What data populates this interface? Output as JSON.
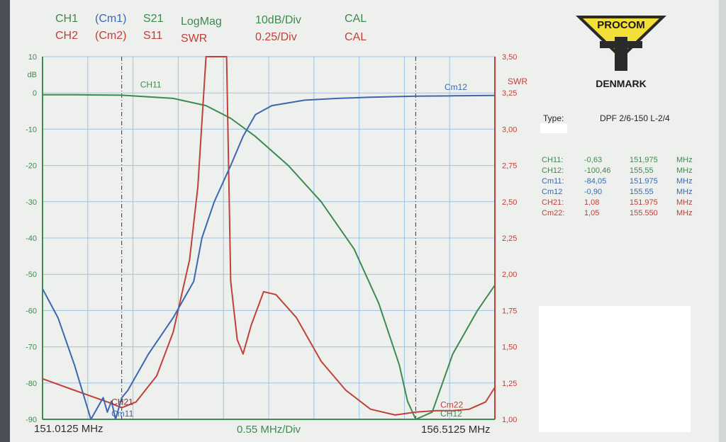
{
  "header": {
    "ch1": "CH1",
    "cm1": "(Cm1)",
    "s21": "S21",
    "logmag": "LogMag",
    "div1": "10dB/Div",
    "cal1": "CAL",
    "ch2": "CH2",
    "cm2": "(Cm2)",
    "s11": "S11",
    "swr": "SWR",
    "div2": "0.25/Div",
    "cal2": "CAL"
  },
  "logo": {
    "brand": "PROCOM",
    "country": "DENMARK"
  },
  "info": {
    "type_label": "Type:",
    "type_value": "DPF 2/6-150 L-2/4"
  },
  "measurements": [
    {
      "label": "CH11:",
      "value": "-0,63",
      "freq": "151,975",
      "unit": "MHz",
      "color": "#3d8a4e"
    },
    {
      "label": "CH12:",
      "value": "-100,46",
      "freq": "155,55",
      "unit": "MHz",
      "color": "#3d8a4e"
    },
    {
      "label": "Cm11:",
      "value": "-84,05",
      "freq": "151.975",
      "unit": "MHz",
      "color": "#3a68b0"
    },
    {
      "label": "Cm12",
      "value": "-0,90",
      "freq": "155.55",
      "unit": "MHz",
      "color": "#3a68b0"
    },
    {
      "label": "CH21:",
      "value": "1,08",
      "freq": "151.975",
      "unit": "MHz",
      "color": "#c0403a"
    },
    {
      "label": "Cm22:",
      "value": "1,05",
      "freq": "155.550",
      "unit": "MHz",
      "color": "#c0403a"
    }
  ],
  "footer": {
    "start": "151.0125 MHz",
    "span": "0.55 MHz/Div",
    "stop": "156.5125 MHz"
  },
  "chart_data": {
    "type": "line",
    "xlim": [
      151.0125,
      156.5125
    ],
    "ylim_left": [
      -90,
      10
    ],
    "ylim_right": [
      1.0,
      3.5
    ],
    "left_unit": "dB",
    "right_unit": "SWR",
    "left_ticks": [
      "10",
      "0",
      "-10",
      "-20",
      "-30",
      "-40",
      "-50",
      "-60",
      "-70",
      "-80",
      "-90"
    ],
    "right_ticks": [
      "3,50",
      "3,25",
      "3,00",
      "2,75",
      "2,50",
      "2,25",
      "2,00",
      "1,75",
      "1,50",
      "1,25",
      "1,00"
    ],
    "markers": [
      151.975,
      155.55
    ],
    "series": [
      {
        "name": "CH1",
        "axis": "left",
        "color": "#3d8a4e",
        "x": [
          151.0125,
          151.4,
          151.975,
          152.6,
          153.0,
          153.3,
          153.6,
          154.0,
          154.4,
          154.8,
          155.1,
          155.35,
          155.45,
          155.55,
          155.75,
          156.0,
          156.3,
          156.5125
        ],
        "y": [
          -0.5,
          -0.5,
          -0.63,
          -1.5,
          -3.5,
          -7,
          -12,
          -20,
          -30,
          -43,
          -58,
          -75,
          -85,
          -90,
          -88,
          -72,
          -60,
          -53
        ]
      },
      {
        "name": "CH2",
        "axis": "right",
        "color": "#c0403a",
        "x": [
          151.0125,
          151.4,
          151.8,
          151.975,
          152.15,
          152.4,
          152.6,
          152.8,
          152.9,
          153.0,
          153.05,
          153.15,
          153.25,
          153.3,
          153.38,
          153.45,
          153.55,
          153.7,
          153.85,
          154.1,
          154.4,
          154.7,
          155.0,
          155.3,
          155.55,
          155.8,
          156.0,
          156.2,
          156.4,
          156.5125
        ],
        "y": [
          1.28,
          1.2,
          1.12,
          1.08,
          1.12,
          1.3,
          1.6,
          2.1,
          2.6,
          3.5,
          3.5,
          3.5,
          3.5,
          1.95,
          1.55,
          1.45,
          1.65,
          1.88,
          1.86,
          1.7,
          1.4,
          1.2,
          1.07,
          1.03,
          1.05,
          1.06,
          1.06,
          1.07,
          1.12,
          1.22
        ]
      },
      {
        "name": "Cm1",
        "axis": "left",
        "color": "#3a68b0",
        "x": [
          151.0125,
          151.2,
          151.4,
          151.6,
          151.7,
          151.75,
          151.8,
          151.85,
          151.9,
          151.975,
          152.05,
          152.3,
          152.6,
          152.85,
          152.95,
          153.1,
          153.3,
          153.45,
          153.6,
          153.8,
          154.2,
          154.6,
          155.0,
          155.55,
          156.0,
          156.5125
        ],
        "y": [
          -54,
          -62,
          -75,
          -90,
          -86,
          -84,
          -88,
          -85,
          -90,
          -84.05,
          -82,
          -72,
          -62,
          -52,
          -40,
          -30,
          -20,
          -12,
          -6,
          -3.5,
          -2,
          -1.5,
          -1.2,
          -0.9,
          -0.8,
          -0.7
        ]
      }
    ],
    "curve_labels": [
      "CH11",
      "Cm12",
      "CH21",
      "Cm11",
      "Cm22",
      "CH12"
    ]
  }
}
